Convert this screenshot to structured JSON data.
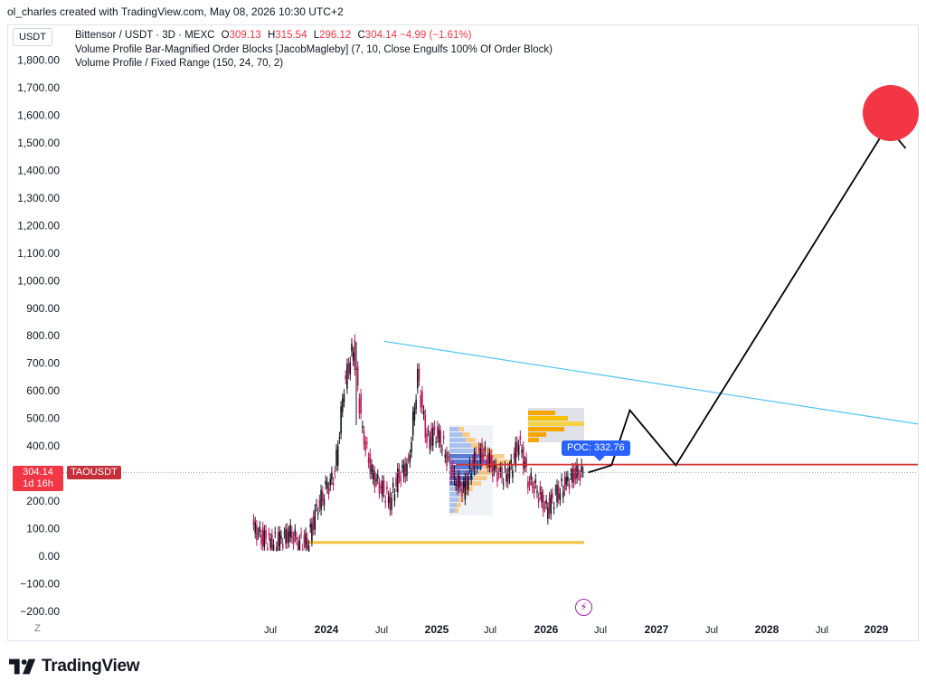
{
  "header": {
    "attribution": "ol_charles created with TradingView.com, May 08, 2026 10:30 UTC+2"
  },
  "toolbar": {
    "currency": "USDT"
  },
  "legend": {
    "symbol_line": "Bittensor / USDT · 3D · MEXC",
    "open_label": "O",
    "open": "309.13",
    "high_label": "H",
    "high": "315.54",
    "low_label": "L",
    "low": "296.12",
    "close_label": "C",
    "close": "304.14",
    "change": "−4.99 (−1.61%)",
    "indicator_1": "Volume Profile Bar-Magnified Order Blocks [JacobMagleby] (7, 10, Close Engulfs 100% Of Order Block)",
    "indicator_2": "Volume Profile / Fixed Range (150, 24, 70, 2)"
  },
  "price_axis": {
    "ticks": [
      "1,800.00",
      "1,700.00",
      "1,600.00",
      "1,500.00",
      "1,400.00",
      "1,300.00",
      "1,200.00",
      "1,100.00",
      "1,000.00",
      "900.00",
      "800.00",
      "700.00",
      "600.00",
      "500.00",
      "400.00",
      "300.00",
      "200.00",
      "100.00",
      "0.00",
      "−100.00",
      "−200.00"
    ]
  },
  "time_axis": {
    "ticks": [
      {
        "label": "Jul",
        "bold": false
      },
      {
        "label": "2024",
        "bold": true
      },
      {
        "label": "Jul",
        "bold": false
      },
      {
        "label": "2025",
        "bold": true
      },
      {
        "label": "Jul",
        "bold": false
      },
      {
        "label": "2026",
        "bold": true
      },
      {
        "label": "Jul",
        "bold": false
      },
      {
        "label": "2027",
        "bold": true
      },
      {
        "label": "Jul",
        "bold": false
      },
      {
        "label": "2028",
        "bold": true
      },
      {
        "label": "Jul",
        "bold": false
      },
      {
        "label": "2029",
        "bold": true
      }
    ]
  },
  "last_price": {
    "price": "304.14",
    "countdown": "1d 16h",
    "ticker": "TAOUSDT"
  },
  "poc": {
    "label": "POC: 332.76",
    "value": 332.76
  },
  "scale_mode": "Z",
  "brand": {
    "name": "TradingView"
  },
  "colors": {
    "down": "#f23645",
    "up": "#089981",
    "trendline": "#4fc3f7",
    "poc_line": "#d32f2f",
    "projection": "#000000",
    "target": "#f23645"
  },
  "chart_data": {
    "type": "line",
    "y_range": [
      -230,
      1880
    ],
    "series": [
      {
        "name": "",
        "x": [
          "2023-05",
          "2023-06",
          "2023-07",
          "2023-08",
          "2023-09",
          "2023-10",
          "2023-11",
          "2023-12",
          "2024-01",
          "2024-02",
          "2024-03",
          "2024-04",
          "2024-05",
          "2024-06",
          "2024-07",
          "2024-08",
          "2024-09",
          "2024-10",
          "2024-11",
          "2024-12",
          "2025-01",
          "2025-02",
          "2025-03",
          "2025-04",
          "2025-05",
          "2025-06",
          "2025-07",
          "2025-08",
          "2025-09",
          "2025-10",
          "2025-11",
          "2025-12",
          "2026-01",
          "2026-02",
          "2026-03",
          "2026-04",
          "2026-05"
        ],
        "y": [
          110,
          70,
          50,
          55,
          85,
          55,
          50,
          170,
          240,
          300,
          620,
          760,
          450,
          300,
          250,
          200,
          300,
          330,
          650,
          420,
          450,
          380,
          280,
          240,
          340,
          380,
          330,
          290,
          300,
          420,
          280,
          240,
          170,
          220,
          260,
          300,
          304
        ]
      }
    ],
    "projection_path": {
      "x": [
        "2026-05",
        "2026-08",
        "2026-10",
        "2027-03",
        "2029-02",
        "2029-04"
      ],
      "y": [
        304,
        330,
        530,
        330,
        1560,
        1480
      ]
    },
    "target_marker": {
      "x": "2029-03",
      "y": 1600
    },
    "trendline": {
      "x": [
        "2024-04",
        "2029-04"
      ],
      "y": [
        780,
        480
      ]
    },
    "horizontal_lines": [
      {
        "name": "POC",
        "y": 332.76
      },
      {
        "name": "Order block",
        "y": 50
      }
    ]
  }
}
